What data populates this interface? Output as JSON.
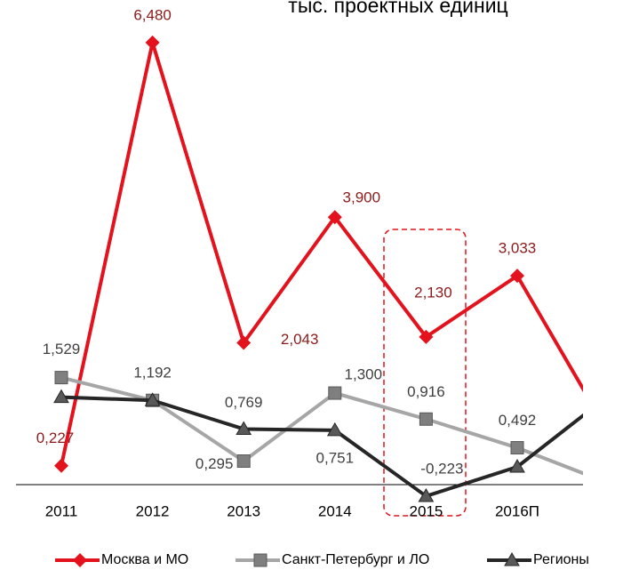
{
  "chart_data": {
    "type": "line",
    "title": "тыс. проектных единиц",
    "categories": [
      "2011",
      "2012",
      "2013",
      "2014",
      "2015",
      "2016П",
      null
    ],
    "ylim": [
      -0.3,
      7.0
    ],
    "grid": false,
    "legend": "bottom",
    "series": [
      {
        "name": "Москва и МО",
        "color": "#e3121c",
        "label_color": "#8c1a1a",
        "marker": "diamond",
        "values": [
          0.227,
          6.48,
          2.043,
          3.9,
          2.13,
          3.033,
          0.72
        ],
        "value_labels": [
          "0,227",
          "6,480",
          "2,043",
          "3,900",
          "2,130",
          "3,033",
          null
        ]
      },
      {
        "name": "Санкт-Петербург и ЛО",
        "color": "#a6a6a6",
        "label_color": "#404040",
        "marker": "square",
        "values": [
          1.529,
          1.192,
          0.295,
          1.3,
          0.916,
          0.492,
          -0.03
        ],
        "value_labels": [
          "1,529",
          "1,192",
          "0,295",
          "1,300",
          "0,916",
          "0,492",
          null
        ]
      },
      {
        "name": "Регионы",
        "color": "#262626",
        "label_color": "#404040",
        "marker": "triangle",
        "values": [
          1.24,
          1.192,
          0.769,
          0.751,
          -0.223,
          0.21,
          1.26
        ],
        "value_labels": [
          null,
          null,
          "0,769",
          "0,751",
          "-0,223",
          null,
          null
        ]
      }
    ]
  }
}
